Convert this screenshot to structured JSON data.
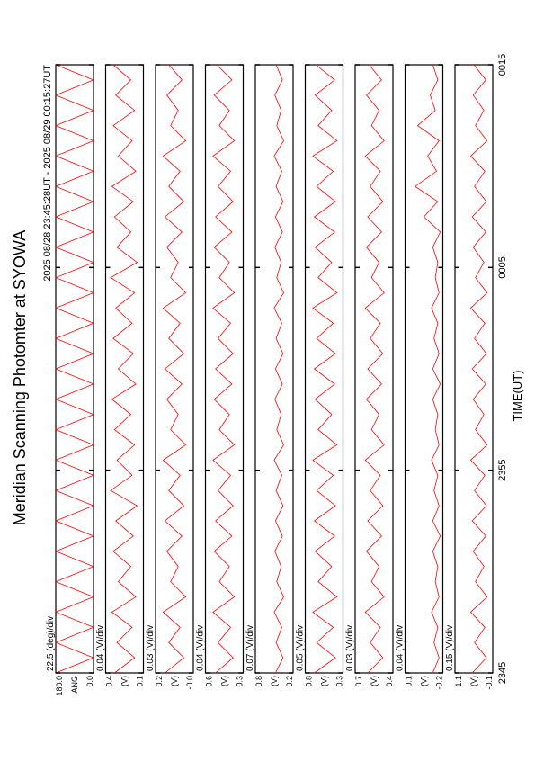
{
  "chart_data": {
    "type": "line",
    "title": "Meridian Scanning Photomter at SYOWA",
    "subtitle": "2025 08/28 23:45:28UT - 2025 08/29 00:15:27UT",
    "xlabel": "TIME(UT)",
    "xlim": [
      0,
      30
    ],
    "xticks": [
      {
        "value": 0,
        "label": "2345"
      },
      {
        "value": 10,
        "label": "2355"
      },
      {
        "value": 20,
        "label": "0005"
      },
      {
        "value": 30,
        "label": "0015"
      }
    ],
    "color": "#ff0000",
    "x": [
      0,
      0.75,
      1.5,
      2.25,
      3,
      3.75,
      4.5,
      5.25,
      6,
      6.75,
      7.5,
      8.25,
      9,
      9.75,
      10.5,
      11.25,
      12,
      12.75,
      13.5,
      14.25,
      15,
      15.75,
      16.5,
      17.25,
      18,
      18.75,
      19.5,
      20.25,
      21,
      21.75,
      22.5,
      23.25,
      24,
      24.75,
      25.5,
      26.25,
      27,
      27.75,
      28.5,
      29.25,
      30
    ],
    "panels": [
      {
        "scale_label": "22.5 (deg)/div",
        "ylabel": "ANG",
        "ylim": [
          0,
          180
        ],
        "yticks": [
          {
            "value": 180,
            "label": "180.0"
          },
          {
            "value": 0,
            "label": "0.0"
          }
        ],
        "values": [
          180,
          0,
          180,
          0,
          180,
          0,
          180,
          0,
          180,
          0,
          180,
          0,
          180,
          0,
          180,
          0,
          180,
          0,
          180,
          0,
          180,
          0,
          180,
          0,
          180,
          0,
          180,
          0,
          180,
          0,
          180,
          0,
          180,
          0,
          180,
          0,
          180,
          0,
          180,
          0,
          180
        ]
      },
      {
        "scale_label": "0.04 (V)/div",
        "ylabel": "(V)",
        "ylim": [
          0.1,
          0.4
        ],
        "yticks": [
          0.4,
          0.1
        ],
        "values": [
          0.33,
          0.17,
          0.31,
          0.19,
          0.35,
          0.16,
          0.3,
          0.2,
          0.34,
          0.18,
          0.32,
          0.15,
          0.36,
          0.19,
          0.31,
          0.17,
          0.33,
          0.2,
          0.35,
          0.16,
          0.3,
          0.18,
          0.34,
          0.19,
          0.32,
          0.17,
          0.36,
          0.15,
          0.31,
          0.2,
          0.33,
          0.18,
          0.35,
          0.16,
          0.3,
          0.19,
          0.34,
          0.17,
          0.32,
          0.2,
          0.34
        ]
      },
      {
        "scale_label": "0.03 (V)/div",
        "ylabel": "(V)",
        "ylim": [
          0,
          0.2
        ],
        "yticks": [
          0.2,
          {
            "value": 0,
            "label": "-0.0"
          }
        ],
        "values": [
          0.15,
          0.05,
          0.13,
          0.07,
          0.16,
          0.04,
          0.12,
          0.08,
          0.14,
          0.06,
          0.15,
          0.05,
          0.13,
          0.07,
          0.16,
          0.04,
          0.12,
          0.08,
          0.14,
          0.06,
          0.15,
          0.05,
          0.13,
          0.07,
          0.16,
          0.04,
          0.12,
          0.08,
          0.14,
          0.06,
          0.15,
          0.05,
          0.13,
          0.07,
          0.16,
          0.04,
          0.12,
          0.08,
          0.14,
          0.06,
          0.13
        ]
      },
      {
        "scale_label": "0.04 (V)/div",
        "ylabel": "(V)",
        "ylim": [
          0.3,
          0.6
        ],
        "yticks": [
          0.6,
          0.3
        ],
        "values": [
          0.52,
          0.38,
          0.5,
          0.4,
          0.54,
          0.37,
          0.49,
          0.41,
          0.53,
          0.39,
          0.52,
          0.38,
          0.5,
          0.4,
          0.54,
          0.37,
          0.49,
          0.41,
          0.53,
          0.39,
          0.52,
          0.38,
          0.5,
          0.4,
          0.54,
          0.37,
          0.49,
          0.41,
          0.53,
          0.39,
          0.52,
          0.38,
          0.5,
          0.4,
          0.54,
          0.37,
          0.49,
          0.41,
          0.53,
          0.39,
          0.51
        ]
      },
      {
        "scale_label": "0.07 (V)/div",
        "ylabel": "(V)",
        "ylim": [
          0.2,
          0.8
        ],
        "yticks": [
          0.8,
          0.2
        ],
        "values": [
          0.48,
          0.36,
          0.47,
          0.38,
          0.5,
          0.35,
          0.46,
          0.39,
          0.49,
          0.37,
          0.48,
          0.36,
          0.47,
          0.38,
          0.5,
          0.35,
          0.46,
          0.39,
          0.49,
          0.37,
          0.48,
          0.36,
          0.47,
          0.38,
          0.5,
          0.35,
          0.46,
          0.39,
          0.49,
          0.37,
          0.48,
          0.36,
          0.47,
          0.38,
          0.5,
          0.35,
          0.46,
          0.39,
          0.49,
          0.37,
          0.47
        ]
      },
      {
        "scale_label": "0.05 (V)/div",
        "ylabel": "(V)",
        "ylim": [
          0.3,
          0.8
        ],
        "yticks": [
          0.8,
          0.3
        ],
        "values": [
          0.68,
          0.4,
          0.65,
          0.43,
          0.7,
          0.38,
          0.63,
          0.45,
          0.67,
          0.41,
          0.68,
          0.4,
          0.65,
          0.43,
          0.7,
          0.38,
          0.63,
          0.45,
          0.67,
          0.41,
          0.68,
          0.4,
          0.65,
          0.43,
          0.7,
          0.38,
          0.63,
          0.45,
          0.67,
          0.41,
          0.68,
          0.4,
          0.65,
          0.43,
          0.7,
          0.38,
          0.63,
          0.45,
          0.67,
          0.41,
          0.66
        ]
      },
      {
        "scale_label": "0.03 (V)/div",
        "ylabel": "(V)",
        "ylim": [
          0.4,
          0.7
        ],
        "yticks": [
          0.7,
          0.4
        ],
        "values": [
          0.6,
          0.48,
          0.58,
          0.5,
          0.62,
          0.47,
          0.57,
          0.51,
          0.61,
          0.49,
          0.6,
          0.48,
          0.58,
          0.5,
          0.62,
          0.47,
          0.57,
          0.51,
          0.61,
          0.49,
          0.6,
          0.48,
          0.58,
          0.5,
          0.62,
          0.47,
          0.57,
          0.51,
          0.61,
          0.49,
          0.6,
          0.48,
          0.58,
          0.5,
          0.62,
          0.47,
          0.57,
          0.51,
          0.61,
          0.49,
          0.59
        ]
      },
      {
        "scale_label": "0.04 (V)/div",
        "ylabel": "(V)",
        "ylim": [
          -0.2,
          0.1
        ],
        "yticks": [
          0.1,
          -0.2
        ],
        "values": [
          -0.12,
          -0.17,
          -0.13,
          -0.16,
          -0.11,
          -0.17,
          -0.14,
          -0.16,
          -0.12,
          -0.18,
          -0.12,
          -0.17,
          -0.13,
          -0.16,
          -0.11,
          -0.17,
          -0.14,
          -0.16,
          -0.12,
          -0.18,
          -0.12,
          -0.17,
          -0.13,
          -0.16,
          -0.11,
          -0.17,
          -0.14,
          -0.16,
          -0.12,
          -0.18,
          -0.05,
          -0.16,
          0.02,
          -0.15,
          -0.08,
          -0.17,
          0.0,
          -0.14,
          -0.1,
          -0.16,
          -0.12
        ]
      },
      {
        "scale_label": "0.15 (V)/div",
        "ylabel": "(V)",
        "ylim": [
          -0.1,
          1.1
        ],
        "yticks": [
          1.1,
          -0.1
        ],
        "values": [
          0.55,
          0.1,
          0.48,
          0.15,
          0.6,
          0.08,
          0.45,
          0.18,
          0.52,
          0.12,
          0.55,
          0.1,
          0.48,
          0.15,
          0.6,
          0.08,
          0.45,
          0.18,
          0.52,
          0.12,
          0.55,
          0.1,
          0.48,
          0.15,
          0.6,
          0.08,
          0.45,
          0.18,
          0.52,
          0.12,
          0.55,
          0.1,
          0.48,
          0.15,
          0.6,
          0.08,
          0.45,
          0.18,
          0.52,
          0.12,
          0.5
        ]
      }
    ]
  }
}
